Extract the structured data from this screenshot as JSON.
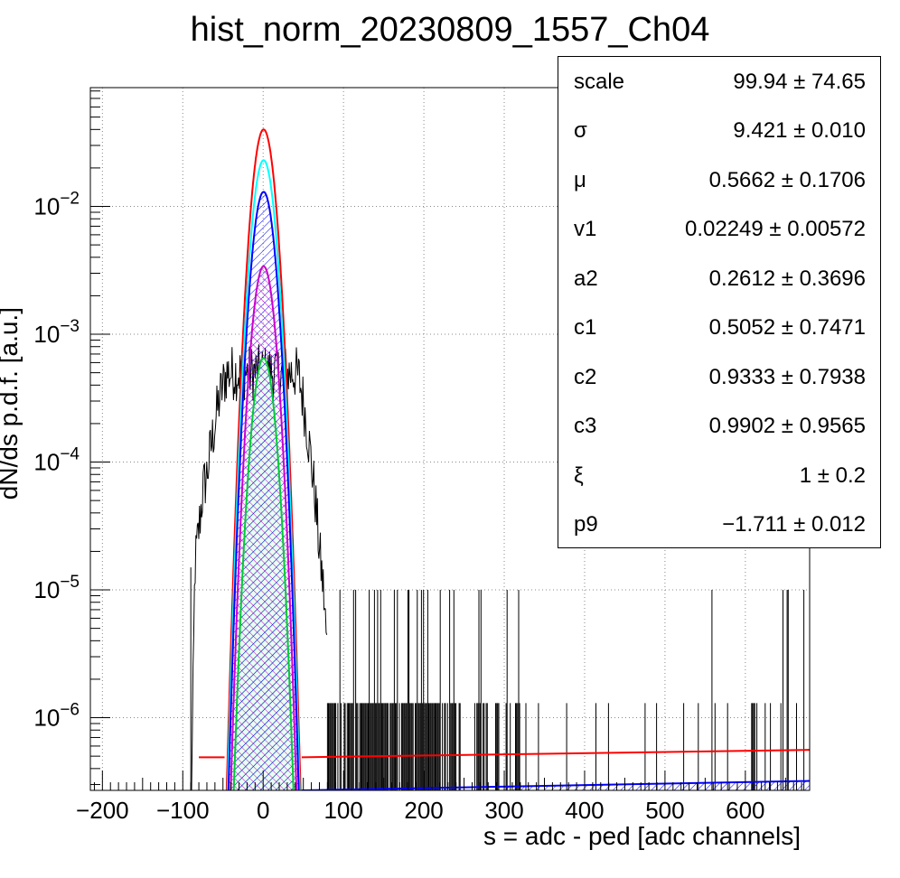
{
  "chart_data": {
    "type": "line",
    "title": "hist_norm_20230809_1557_Ch04",
    "xlabel": "s = adc - ped [adc channels]",
    "ylabel": "dN/ds p.d.f. [a.u.]",
    "xlim": [
      -215,
      680
    ],
    "ylim": [
      2.7e-07,
      0.085
    ],
    "yscale": "log",
    "grid": true,
    "x_ticks": [
      -200,
      -100,
      0,
      100,
      200,
      300,
      400,
      500,
      600
    ],
    "x_tick_labels": [
      "−200",
      "−100",
      "0",
      "100",
      "200",
      "300",
      "400",
      "500",
      "600"
    ],
    "y_ticks": [
      {
        "value": 1e-06,
        "base": "10",
        "exp": "−6"
      },
      {
        "value": 1e-05,
        "base": "10",
        "exp": "−5"
      },
      {
        "value": 0.0001,
        "base": "10",
        "exp": "−4"
      },
      {
        "value": 0.001,
        "base": "10",
        "exp": "−3"
      },
      {
        "value": 0.01,
        "base": "10",
        "exp": "−2"
      }
    ],
    "series": [
      {
        "color": "#ff0000",
        "role": "total fit",
        "peak": 0.04,
        "mu": 0.5662,
        "sigma": 9.421,
        "bg_start": 4.9e-07,
        "bg_end": 5.6e-07,
        "bg_from": -80
      },
      {
        "color": "#00ffff",
        "role": "component",
        "peak": 0.023,
        "mu": 0.5662,
        "sigma": 9.421
      },
      {
        "color": "#0000ff",
        "role": "component",
        "peak": 0.013,
        "mu": 0.5662,
        "sigma": 9.421,
        "hatched": true,
        "bg_start": 2.7e-07,
        "bg_end": 3.2e-07,
        "bg_from": 40
      },
      {
        "color": "#cc00cc",
        "role": "component",
        "peak": 0.0034,
        "mu": 0.5662,
        "sigma": 9.421,
        "hatched": true
      },
      {
        "color": "#00cc33",
        "role": "component",
        "peak": 0.00065,
        "mu": 0.5662,
        "sigma": 9.421,
        "hatched": true
      }
    ],
    "histogram_envelope": [
      [
        -90,
        1e-07
      ],
      [
        -85,
        1.5e-05
      ],
      [
        -80,
        3e-05
      ],
      [
        -75,
        6e-05
      ],
      [
        -70,
        8e-05
      ],
      [
        -65,
        0.00013
      ],
      [
        -60,
        0.0002
      ],
      [
        -55,
        0.0003
      ],
      [
        -50,
        0.0004
      ],
      [
        -45,
        0.0005
      ],
      [
        -40,
        0.0005
      ],
      [
        40,
        0.0005
      ],
      [
        45,
        0.00045
      ],
      [
        50,
        0.0003
      ],
      [
        55,
        0.00018
      ],
      [
        60,
        0.0001
      ],
      [
        65,
        5e-05
      ],
      [
        70,
        2e-05
      ],
      [
        75,
        1e-05
      ],
      [
        80,
        3e-06
      ]
    ],
    "histogram_noise": {
      "from": 80,
      "to": 680,
      "level": 1.3e-06,
      "spike_level": 1e-05
    }
  },
  "stats": {
    "rows": [
      {
        "name": "scale",
        "value": "99.94 ± 74.65"
      },
      {
        "name": "σ",
        "value": "9.421 ± 0.010"
      },
      {
        "name": "μ",
        "value": "0.5662 ± 0.1706"
      },
      {
        "name": "v1",
        "value": "0.02249 ± 0.00572"
      },
      {
        "name": "a2",
        "value": "0.2612 ± 0.3696"
      },
      {
        "name": "c1",
        "value": "0.5052 ± 0.7471"
      },
      {
        "name": "c2",
        "value": "0.9333 ± 0.7938"
      },
      {
        "name": "c3",
        "value": "0.9902 ± 0.9565"
      },
      {
        "name": "ξ",
        "value": "1 ± 0.2"
      },
      {
        "name": "p9",
        "value": "−1.711 ± 0.012"
      }
    ]
  }
}
